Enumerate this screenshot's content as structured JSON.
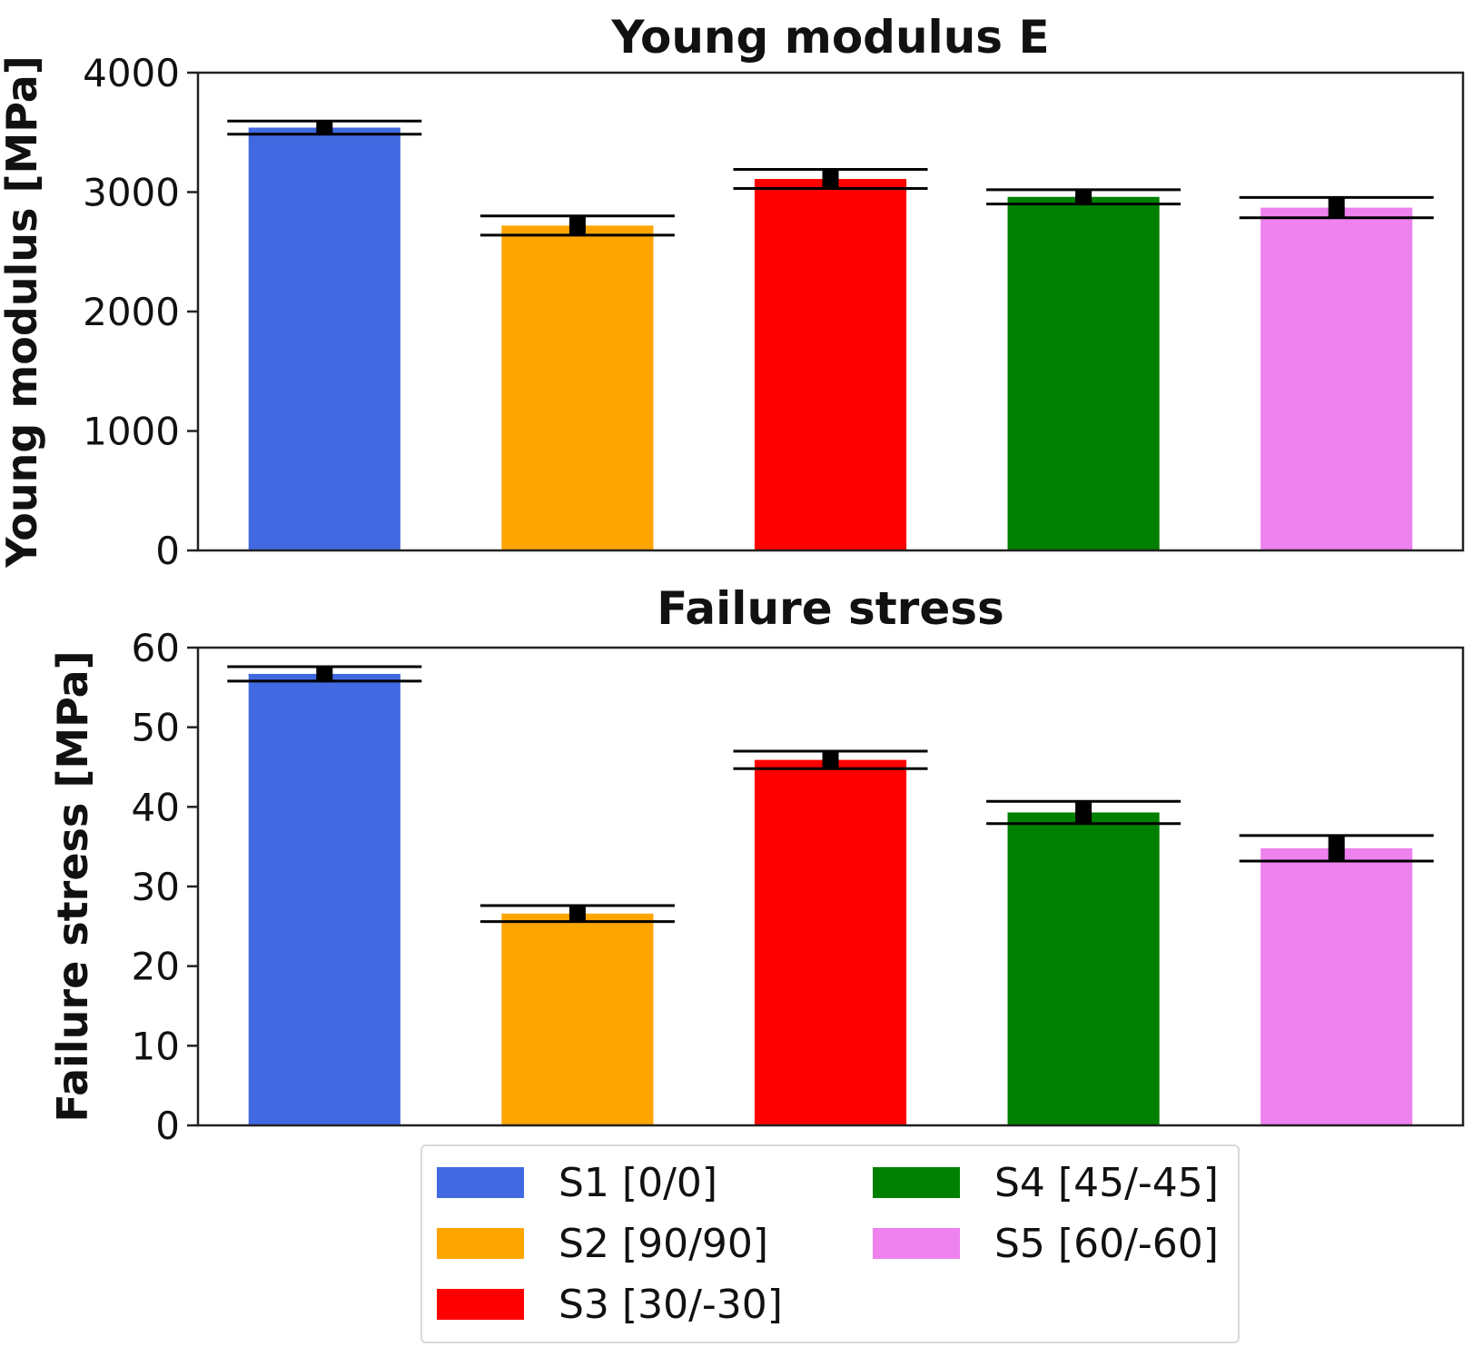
{
  "chart_data": [
    {
      "type": "bar",
      "title": "Young modulus E",
      "xlabel": "",
      "ylabel": "Young modulus [MPa]",
      "ylim": [
        0,
        4000
      ],
      "yticks": [
        "0",
        "1000",
        "2000",
        "3000",
        "4000"
      ],
      "categories": [
        "S1 [0/0]",
        "S2 [90/90]",
        "S3 [30/-30]",
        "S4 [45/-45]",
        "S5 [60/-60]"
      ],
      "values": [
        3540,
        2720,
        3110,
        2960,
        2870
      ],
      "errors": [
        55,
        80,
        80,
        60,
        85
      ],
      "colors": [
        "#4169E1",
        "#FFA500",
        "#FF0000",
        "#008000",
        "#EE82EE"
      ]
    },
    {
      "type": "bar",
      "title": "Failure stress",
      "xlabel": "",
      "ylabel": "Failure stress [MPa]",
      "ylim": [
        0,
        60
      ],
      "yticks": [
        "0",
        "10",
        "20",
        "30",
        "40",
        "50",
        "60"
      ],
      "categories": [
        "S1 [0/0]",
        "S2 [90/90]",
        "S3 [30/-30]",
        "S4 [45/-45]",
        "S5 [60/-60]"
      ],
      "values": [
        56.7,
        26.6,
        45.9,
        39.3,
        34.8
      ],
      "errors": [
        0.9,
        1.0,
        1.1,
        1.4,
        1.6
      ],
      "colors": [
        "#4169E1",
        "#FFA500",
        "#FF0000",
        "#008000",
        "#EE82EE"
      ]
    }
  ],
  "legend": {
    "items": [
      {
        "label": "S1 [0/0]",
        "color": "#4169E1"
      },
      {
        "label": "S2 [90/90]",
        "color": "#FFA500"
      },
      {
        "label": "S3 [30/-30]",
        "color": "#FF0000"
      },
      {
        "label": "S4 [45/-45]",
        "color": "#008000"
      },
      {
        "label": "S5 [60/-60]",
        "color": "#EE82EE"
      }
    ]
  }
}
